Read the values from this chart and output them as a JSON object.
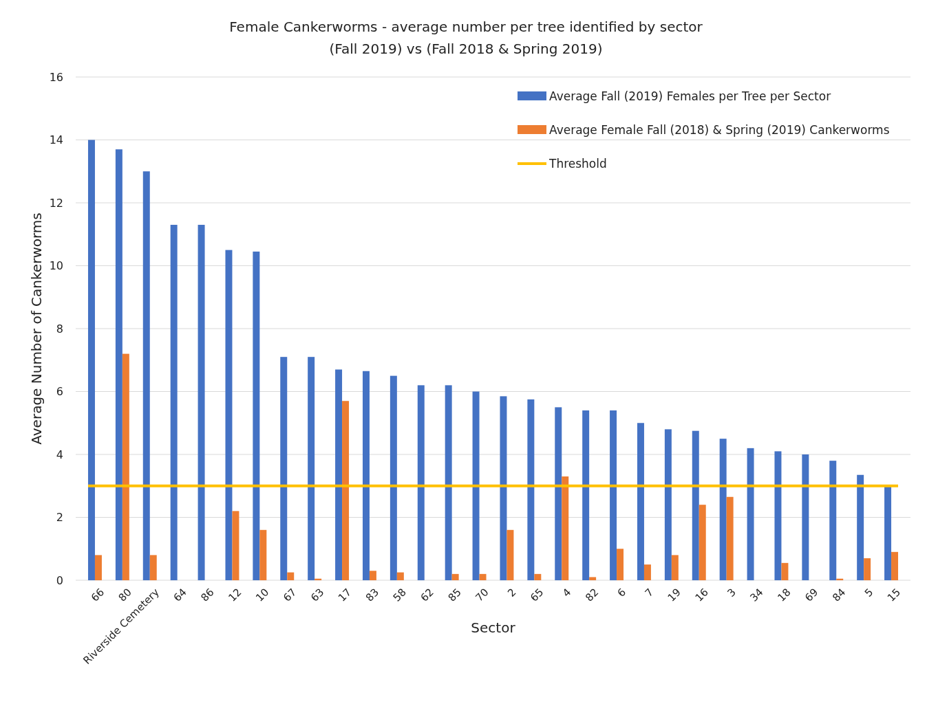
{
  "chart_data": {
    "type": "bar",
    "title": "Female Cankerworms - average number per tree identified by sector",
    "subtitle": "(Fall 2019) vs (Fall 2018 & Spring 2019)",
    "xlabel": "Sector",
    "ylabel": "Average Number of Cankerworms",
    "categories": [
      "66",
      "80",
      "Riverside Cemetery",
      "64",
      "86",
      "12",
      "10",
      "67",
      "63",
      "17",
      "83",
      "58",
      "62",
      "85",
      "70",
      "2",
      "65",
      "4",
      "82",
      "6",
      "7",
      "19",
      "16",
      "3",
      "34",
      "18",
      "69",
      "84",
      "5",
      "15"
    ],
    "series": [
      {
        "name": "Average Fall (2019) Females per Tree per Sector",
        "color": "#4472c4",
        "values": [
          14.0,
          13.7,
          13.0,
          11.3,
          11.3,
          10.5,
          10.45,
          7.1,
          7.1,
          6.7,
          6.65,
          6.5,
          6.2,
          6.2,
          6.0,
          5.85,
          5.75,
          5.5,
          5.4,
          5.4,
          5.0,
          4.8,
          4.75,
          4.5,
          4.2,
          4.1,
          4.0,
          3.8,
          3.35,
          3.0
        ]
      },
      {
        "name": "Average Female Fall (2018) & Spring (2019) Cankerworms",
        "color": "#ed7d31",
        "values": [
          0.8,
          7.2,
          0.8,
          0,
          0,
          2.2,
          1.6,
          0.25,
          0.05,
          5.7,
          0.3,
          0.25,
          0,
          0.2,
          0.2,
          1.6,
          0.2,
          3.3,
          0.1,
          1.0,
          0.5,
          0.8,
          2.4,
          2.65,
          0,
          0.55,
          0,
          0.05,
          0.7,
          0.9
        ]
      }
    ],
    "ref_lines": [
      {
        "axis": "y",
        "value": 3,
        "label": "Threshold",
        "color": "#ffc000"
      }
    ],
    "ylim": [
      0,
      16
    ],
    "yticks": [
      0,
      2,
      4,
      6,
      8,
      10,
      12,
      14,
      16
    ],
    "grid": "y",
    "legend": "top right"
  }
}
